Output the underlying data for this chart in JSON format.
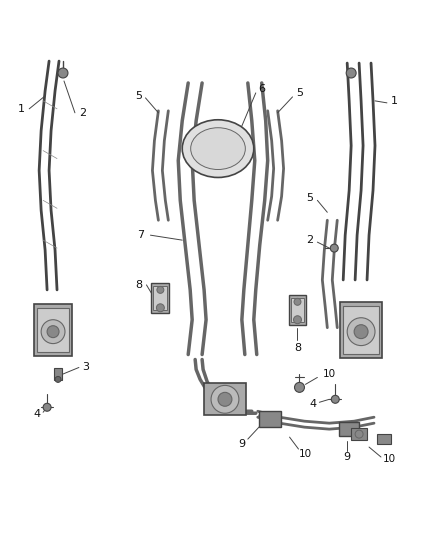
{
  "background_color": "#ffffff",
  "line_color": "#444444",
  "gray_dark": "#666666",
  "gray_med": "#888888",
  "gray_light": "#aaaaaa",
  "gray_fill": "#cccccc",
  "figsize": [
    4.38,
    5.33
  ],
  "dpi": 100
}
